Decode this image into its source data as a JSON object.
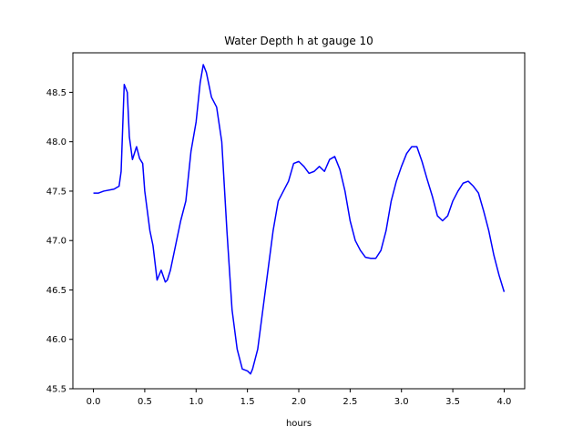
{
  "chart_data": {
    "type": "line",
    "title": "Water Depth h at gauge 10",
    "xlabel": "hours",
    "ylabel": "",
    "xlim": [
      -0.2,
      4.2
    ],
    "ylim": [
      45.5,
      48.9
    ],
    "xticks": [
      0.0,
      0.5,
      1.0,
      1.5,
      2.0,
      2.5,
      3.0,
      3.5,
      4.0
    ],
    "xtick_labels": [
      "0.0",
      "0.5",
      "1.0",
      "1.5",
      "2.0",
      "2.5",
      "3.0",
      "3.5",
      "4.0"
    ],
    "yticks": [
      45.5,
      46.0,
      46.5,
      47.0,
      47.5,
      48.0,
      48.5
    ],
    "ytick_labels": [
      "45.5",
      "46.0",
      "46.5",
      "47.0",
      "47.5",
      "48.0",
      "48.5"
    ],
    "grid": false,
    "series": [
      {
        "color": "#0000ff",
        "x": [
          0.0,
          0.05,
          0.1,
          0.2,
          0.25,
          0.27,
          0.3,
          0.33,
          0.35,
          0.38,
          0.42,
          0.45,
          0.48,
          0.5,
          0.55,
          0.58,
          0.62,
          0.66,
          0.7,
          0.72,
          0.75,
          0.8,
          0.85,
          0.9,
          0.95,
          1.0,
          1.04,
          1.07,
          1.1,
          1.15,
          1.2,
          1.25,
          1.3,
          1.35,
          1.4,
          1.45,
          1.5,
          1.53,
          1.55,
          1.6,
          1.65,
          1.7,
          1.75,
          1.8,
          1.85,
          1.9,
          1.95,
          2.0,
          2.05,
          2.1,
          2.15,
          2.2,
          2.25,
          2.3,
          2.35,
          2.4,
          2.45,
          2.5,
          2.55,
          2.6,
          2.65,
          2.7,
          2.75,
          2.8,
          2.85,
          2.9,
          2.95,
          3.0,
          3.05,
          3.1,
          3.15,
          3.2,
          3.25,
          3.3,
          3.35,
          3.4,
          3.45,
          3.5,
          3.55,
          3.6,
          3.65,
          3.7,
          3.75,
          3.8,
          3.85,
          3.9,
          3.95,
          4.0
        ],
        "y": [
          47.48,
          47.48,
          47.5,
          47.52,
          47.55,
          47.7,
          48.58,
          48.5,
          48.05,
          47.82,
          47.95,
          47.83,
          47.78,
          47.5,
          47.1,
          46.95,
          46.6,
          46.7,
          46.58,
          46.6,
          46.7,
          46.95,
          47.2,
          47.4,
          47.9,
          48.2,
          48.6,
          48.78,
          48.7,
          48.45,
          48.35,
          48.0,
          47.1,
          46.3,
          45.9,
          45.7,
          45.68,
          45.65,
          45.7,
          45.9,
          46.3,
          46.7,
          47.1,
          47.4,
          47.5,
          47.6,
          47.78,
          47.8,
          47.75,
          47.68,
          47.7,
          47.75,
          47.7,
          47.82,
          47.85,
          47.72,
          47.5,
          47.2,
          47.0,
          46.9,
          46.83,
          46.82,
          46.82,
          46.9,
          47.1,
          47.4,
          47.6,
          47.75,
          47.88,
          47.95,
          47.95,
          47.8,
          47.62,
          47.45,
          47.25,
          47.2,
          47.25,
          47.4,
          47.5,
          47.58,
          47.6,
          47.55,
          47.48,
          47.3,
          47.1,
          46.85,
          46.65,
          46.48
        ]
      }
    ]
  }
}
